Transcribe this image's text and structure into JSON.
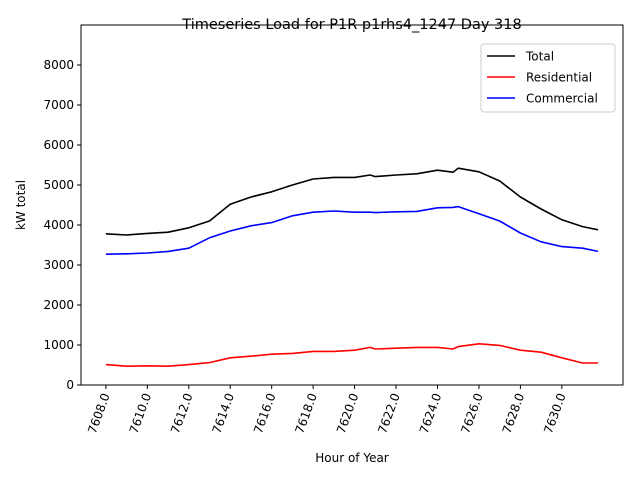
{
  "chart_data": {
    "type": "line",
    "title": "Timeseries Load for P1R p1rhs4_1247  Day 318",
    "xlabel": "Hour of Year",
    "ylabel": "kW total",
    "xlim": [
      7606.8,
      7632.95
    ],
    "ylim": [
      0,
      9000
    ],
    "xticks": [
      7608,
      7610,
      7612,
      7614,
      7616,
      7618,
      7620,
      7622,
      7624,
      7626,
      7628,
      7630
    ],
    "xtick_labels": [
      "7608.0",
      "7610.0",
      "7612.0",
      "7614.0",
      "7616.0",
      "7618.0",
      "7620.0",
      "7622.0",
      "7624.0",
      "7626.0",
      "7628.0",
      "7630.0"
    ],
    "yticks": [
      0,
      1000,
      2000,
      3000,
      4000,
      5000,
      6000,
      7000,
      8000
    ],
    "ytick_labels": [
      "0",
      "1000",
      "2000",
      "3000",
      "4000",
      "5000",
      "6000",
      "7000",
      "8000"
    ],
    "legend_position": "top-right",
    "grid": false,
    "x": [
      7608,
      7609,
      7610,
      7611,
      7612,
      7613,
      7614,
      7615,
      7616,
      7617,
      7618,
      7619,
      7620,
      7620.75,
      7621,
      7622,
      7623,
      7624,
      7624.75,
      7625,
      7626,
      7627,
      7628,
      7629,
      7630,
      7631,
      7631.75
    ],
    "series": [
      {
        "name": "Total",
        "color": "#000000",
        "values": [
          3780,
          3750,
          3790,
          3820,
          3930,
          4100,
          4520,
          4700,
          4830,
          5000,
          5150,
          5190,
          5190,
          5250,
          5210,
          5250,
          5280,
          5370,
          5320,
          5420,
          5330,
          5100,
          4700,
          4400,
          4130,
          3960,
          3880
        ]
      },
      {
        "name": "Residential",
        "color": "#ff0000",
        "values": [
          510,
          470,
          480,
          470,
          510,
          560,
          680,
          720,
          770,
          790,
          840,
          840,
          870,
          940,
          900,
          920,
          940,
          940,
          900,
          960,
          1030,
          990,
          870,
          820,
          680,
          550,
          550
        ]
      },
      {
        "name": "Commercial",
        "color": "#0000ff",
        "values": [
          3270,
          3280,
          3300,
          3340,
          3420,
          3680,
          3850,
          3980,
          4060,
          4230,
          4320,
          4350,
          4320,
          4320,
          4310,
          4330,
          4340,
          4430,
          4440,
          4460,
          4280,
          4100,
          3800,
          3580,
          3460,
          3420,
          3340
        ]
      }
    ]
  }
}
